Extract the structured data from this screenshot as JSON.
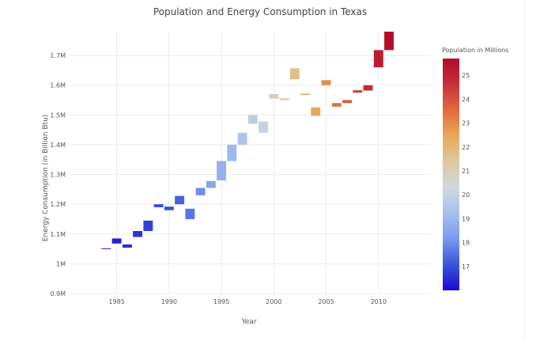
{
  "chart_data": {
    "type": "bar",
    "title": "Population and Energy Consumption in Texas",
    "xlabel": "Year",
    "ylabel": "Energy Consumption (in Billion Btu)",
    "xlim": [
      1980.5,
      2015
    ],
    "ylim": [
      900000,
      1780000
    ],
    "x_ticks": [
      {
        "value": 1985,
        "label": "1985"
      },
      {
        "value": 1990,
        "label": "1990"
      },
      {
        "value": 1995,
        "label": "1995"
      },
      {
        "value": 2000,
        "label": "2000"
      },
      {
        "value": 2005,
        "label": "2005"
      },
      {
        "value": 2010,
        "label": "2010"
      }
    ],
    "y_ticks": [
      {
        "value": 900000,
        "label": "0.9M"
      },
      {
        "value": 1000000,
        "label": "1M"
      },
      {
        "value": 1100000,
        "label": "1.1M"
      },
      {
        "value": 1200000,
        "label": "1.2M"
      },
      {
        "value": 1300000,
        "label": "1.3M"
      },
      {
        "value": 1400000,
        "label": "1.4M"
      },
      {
        "value": 1500000,
        "label": "1.5M"
      },
      {
        "value": 1600000,
        "label": "1.6M"
      },
      {
        "value": 1700000,
        "label": "1.7M"
      }
    ],
    "grid": true,
    "colorbar": {
      "title": "Population in Millions",
      "range": [
        16,
        25.7
      ],
      "colorscale": [
        "#1e0bd0",
        "#3a55d8",
        "#7a9af0",
        "#a8c0f0",
        "#cfd8dc",
        "#dcc9a0",
        "#e8a95a",
        "#e06b3e",
        "#c8303a",
        "#b20a2c"
      ],
      "ticks": [
        17,
        18,
        19,
        20,
        21,
        22,
        23,
        24,
        25
      ]
    },
    "series": [
      {
        "points": [
          {
            "year": 1984,
            "base": 1050000,
            "top": 1052000,
            "population": 16.1
          },
          {
            "year": 1985,
            "base": 1068000,
            "top": 1085000,
            "population": 16.3
          },
          {
            "year": 1986,
            "base": 1054000,
            "top": 1065000,
            "population": 16.5
          },
          {
            "year": 1987,
            "base": 1090000,
            "top": 1110000,
            "population": 16.6
          },
          {
            "year": 1988,
            "base": 1110000,
            "top": 1145000,
            "population": 16.8
          },
          {
            "year": 1989,
            "base": 1190000,
            "top": 1200000,
            "population": 16.9
          },
          {
            "year": 1990,
            "base": 1180000,
            "top": 1192000,
            "population": 17.0
          },
          {
            "year": 1991,
            "base": 1200000,
            "top": 1228000,
            "population": 17.3
          },
          {
            "year": 1992,
            "base": 1150000,
            "top": 1185000,
            "population": 17.6
          },
          {
            "year": 1993,
            "base": 1230000,
            "top": 1255000,
            "population": 18.0
          },
          {
            "year": 1994,
            "base": 1255000,
            "top": 1278000,
            "population": 18.4
          },
          {
            "year": 1995,
            "base": 1280000,
            "top": 1345000,
            "population": 18.8
          },
          {
            "year": 1996,
            "base": 1345000,
            "top": 1400000,
            "population": 19.0
          },
          {
            "year": 1997,
            "base": 1400000,
            "top": 1440000,
            "population": 19.4
          },
          {
            "year": 1998,
            "base": 1470000,
            "top": 1500000,
            "population": 19.8
          },
          {
            "year": 1999,
            "base": 1440000,
            "top": 1478000,
            "population": 20.1
          },
          {
            "year": 2000,
            "base": 1555000,
            "top": 1570000,
            "population": 20.9
          },
          {
            "year": 2001,
            "base": 1550000,
            "top": 1556000,
            "population": 21.3
          },
          {
            "year": 2002,
            "base": 1620000,
            "top": 1657000,
            "population": 21.7
          },
          {
            "year": 2003,
            "base": 1567000,
            "top": 1572000,
            "population": 22.1
          },
          {
            "year": 2004,
            "base": 1497000,
            "top": 1525000,
            "population": 22.5
          },
          {
            "year": 2005,
            "base": 1600000,
            "top": 1617000,
            "population": 22.9
          },
          {
            "year": 2006,
            "base": 1528000,
            "top": 1540000,
            "population": 23.5
          },
          {
            "year": 2007,
            "base": 1540000,
            "top": 1550000,
            "population": 23.9
          },
          {
            "year": 2008,
            "base": 1575000,
            "top": 1583000,
            "population": 24.3
          },
          {
            "year": 2009,
            "base": 1582000,
            "top": 1600000,
            "population": 24.8
          },
          {
            "year": 2010,
            "base": 1660000,
            "top": 1718000,
            "population": 25.2
          },
          {
            "year": 2011,
            "base": 1718000,
            "top": 1780000,
            "population": 25.6
          }
        ]
      }
    ]
  }
}
